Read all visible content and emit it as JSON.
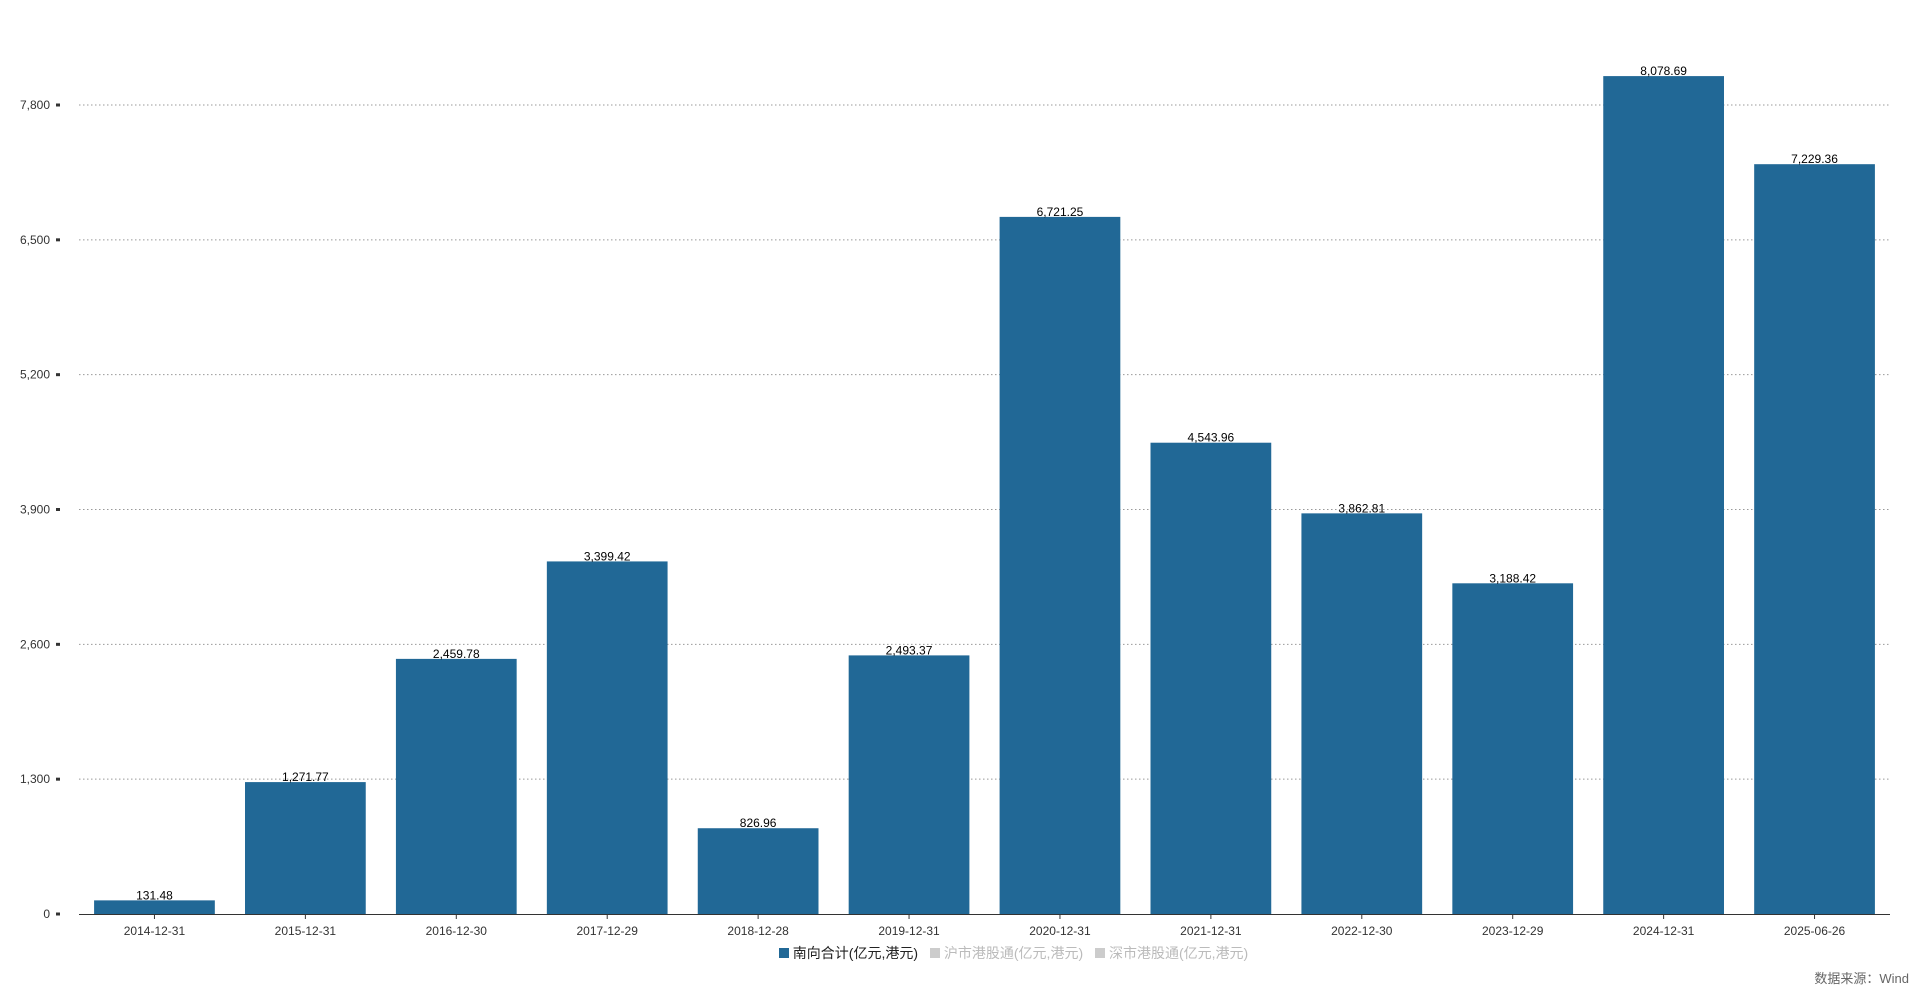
{
  "chart_data": {
    "type": "bar",
    "categories": [
      "2014-12-31",
      "2015-12-31",
      "2016-12-30",
      "2017-12-29",
      "2018-12-28",
      "2019-12-31",
      "2020-12-31",
      "2021-12-31",
      "2022-12-30",
      "2023-12-29",
      "2024-12-31",
      "2025-06-26"
    ],
    "series": [
      {
        "name": "南向合计(亿元,港元)",
        "color": "#216896",
        "active": true,
        "values": [
          131.48,
          1271.77,
          2459.78,
          3399.42,
          826.96,
          2493.37,
          6721.25,
          4543.96,
          3862.81,
          3188.42,
          8078.69,
          7229.36
        ],
        "labels": [
          "131.48",
          "1,271.77",
          "2,459.78",
          "3,399.42",
          "826.96",
          "2,493.37",
          "6,721.25",
          "4,543.96",
          "3,862.81",
          "3,188.42",
          "8,078.69",
          "7,229.36"
        ]
      },
      {
        "name": "沪市港股通(亿元,港元)",
        "color": "#cccccc",
        "active": false
      },
      {
        "name": "深市港股通(亿元,港元)",
        "color": "#cccccc",
        "active": false
      }
    ],
    "yticks": [
      0,
      1300,
      2600,
      3900,
      5200,
      6500,
      7800
    ],
    "ytick_labels": [
      "0",
      "1,300",
      "2,600",
      "3,900",
      "5,200",
      "6,500",
      "7,800"
    ],
    "ylim": [
      0,
      7800
    ],
    "grid": true,
    "legend": "bottom",
    "source": "数据来源：Wind"
  }
}
